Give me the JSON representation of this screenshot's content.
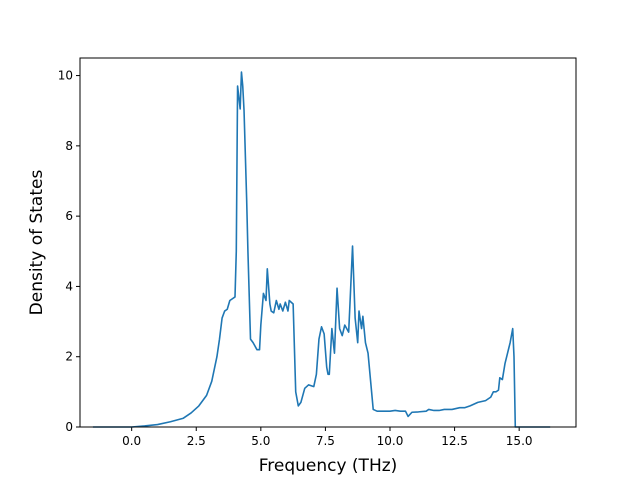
{
  "chart_data": {
    "type": "line",
    "title": "",
    "xlabel": "Frequency (THz)",
    "ylabel": "Density of States",
    "xlim": [
      -2.0,
      17.2
    ],
    "ylim": [
      0,
      10.5
    ],
    "grid": false,
    "legend": "none",
    "line_color": "#1f77b4",
    "xticks": [
      {
        "value": 0.0,
        "label": "0.0"
      },
      {
        "value": 2.5,
        "label": "2.5"
      },
      {
        "value": 5.0,
        "label": "5.0"
      },
      {
        "value": 7.5,
        "label": "7.5"
      },
      {
        "value": 10.0,
        "label": "10.0"
      },
      {
        "value": 12.5,
        "label": "12.5"
      },
      {
        "value": 15.0,
        "label": "15.0"
      }
    ],
    "yticks": [
      {
        "value": 0,
        "label": "0"
      },
      {
        "value": 2,
        "label": "2"
      },
      {
        "value": 4,
        "label": "4"
      },
      {
        "value": 6,
        "label": "6"
      },
      {
        "value": 8,
        "label": "8"
      },
      {
        "value": 10,
        "label": "10"
      }
    ],
    "series": [
      {
        "x": [
          -1.5,
          -0.5,
          0.0,
          0.5,
          1.0,
          1.5,
          2.0,
          2.3,
          2.6,
          2.9,
          3.1,
          3.3,
          3.4,
          3.5,
          3.6,
          3.7,
          3.8,
          3.9,
          4.0,
          4.05,
          4.1,
          4.2,
          4.25,
          4.3,
          4.35,
          4.45,
          4.5,
          4.6,
          4.7,
          4.85,
          4.95,
          5.0,
          5.1,
          5.2,
          5.25,
          5.35,
          5.4,
          5.5,
          5.6,
          5.7,
          5.75,
          5.85,
          5.95,
          6.05,
          6.1,
          6.25,
          6.35,
          6.45,
          6.55,
          6.7,
          6.85,
          7.05,
          7.15,
          7.25,
          7.35,
          7.45,
          7.55,
          7.6,
          7.65,
          7.75,
          7.85,
          7.95,
          8.05,
          8.15,
          8.25,
          8.4,
          8.45,
          8.55,
          8.65,
          8.75,
          8.8,
          8.9,
          8.95,
          9.05,
          9.15,
          9.25,
          9.35,
          9.5,
          9.8,
          10.0,
          10.2,
          10.4,
          10.6,
          10.7,
          10.85,
          11.1,
          11.4,
          11.5,
          11.7,
          11.9,
          12.1,
          12.4,
          12.7,
          12.9,
          13.1,
          13.4,
          13.7,
          13.9,
          14.0,
          14.1,
          14.2,
          14.25,
          14.35,
          14.45,
          14.55,
          14.65,
          14.75,
          14.8,
          14.85,
          15.2,
          15.6,
          16.2
        ],
        "y": [
          0,
          0,
          0.0,
          0.03,
          0.07,
          0.15,
          0.25,
          0.4,
          0.6,
          0.9,
          1.3,
          2.0,
          2.5,
          3.1,
          3.3,
          3.35,
          3.6,
          3.65,
          3.7,
          5.0,
          9.7,
          9.05,
          10.1,
          9.7,
          9.0,
          6.5,
          5.0,
          2.5,
          2.4,
          2.2,
          2.2,
          2.9,
          3.8,
          3.6,
          4.5,
          3.5,
          3.3,
          3.25,
          3.6,
          3.35,
          3.5,
          3.3,
          3.55,
          3.3,
          3.6,
          3.5,
          1.0,
          0.6,
          0.7,
          1.1,
          1.2,
          1.15,
          1.5,
          2.5,
          2.85,
          2.65,
          1.7,
          1.5,
          1.5,
          2.8,
          2.1,
          3.95,
          2.8,
          2.6,
          2.9,
          2.7,
          3.5,
          5.15,
          3.1,
          2.4,
          3.3,
          2.8,
          3.15,
          2.4,
          2.1,
          1.3,
          0.5,
          0.45,
          0.45,
          0.45,
          0.47,
          0.45,
          0.45,
          0.3,
          0.42,
          0.43,
          0.45,
          0.5,
          0.47,
          0.47,
          0.5,
          0.5,
          0.55,
          0.55,
          0.6,
          0.7,
          0.75,
          0.85,
          1.0,
          1.0,
          1.05,
          1.4,
          1.35,
          1.8,
          2.1,
          2.4,
          2.8,
          2.0,
          0.0,
          0.0,
          0.0,
          0.0
        ]
      }
    ]
  }
}
